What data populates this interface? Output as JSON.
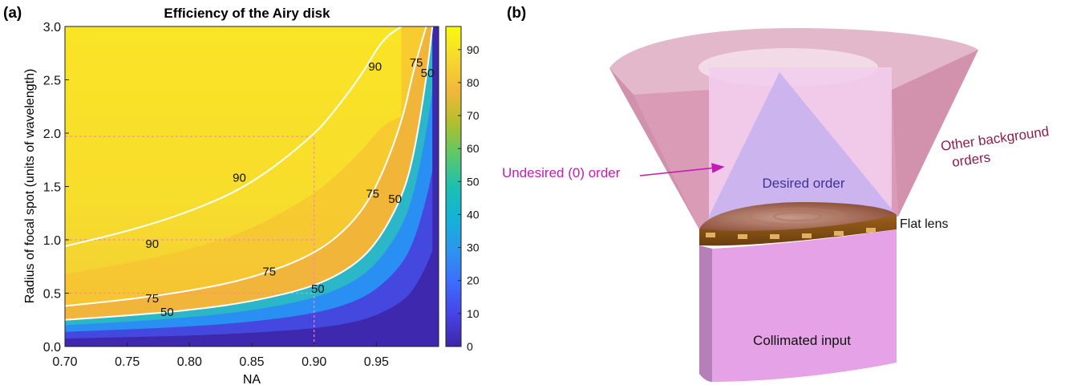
{
  "panel_a": {
    "label": "(a)"
  },
  "panel_b": {
    "label": "(b)",
    "labels": {
      "undesired": "Undesired (0) order",
      "desired": "Desired order",
      "background_line1": "Other background",
      "background_line2": "orders",
      "flat_lens": "Flat lens",
      "input": "Collimated input"
    },
    "colors": {
      "cone_outer": "#d795b1",
      "cone_inner": "#f0c8ec",
      "desired_cone": "#c9b4ee",
      "input_beam": "#e6a2e6",
      "lens": "#b8741e",
      "undesired_text": "#c51bb5",
      "background_text": "#8d1e4c",
      "desired_text": "#3f3294"
    }
  },
  "chart_data": {
    "type": "heatmap",
    "title": "Efficiency of the Airy disk",
    "xlabel": "NA",
    "ylabel": "Radius of focal spot (units of wavelength)",
    "xlim": [
      0.7,
      1.0
    ],
    "ylim": [
      0.0,
      3.0
    ],
    "xticks": [
      "0.70",
      "0.75",
      "0.80",
      "0.85",
      "0.90",
      "0.95"
    ],
    "yticks": [
      "0.0",
      "0.5",
      "1.0",
      "1.5",
      "2.0",
      "2.5",
      "3.0"
    ],
    "colorbar": {
      "range": [
        0,
        97
      ],
      "ticks": [
        "0",
        "10",
        "20",
        "30",
        "40",
        "50",
        "60",
        "70",
        "80",
        "90"
      ],
      "colormap": "parula"
    },
    "contours": [
      {
        "level": 50,
        "label": "50",
        "na": [
          0.7,
          0.75,
          0.8,
          0.85,
          0.9,
          0.93,
          0.95,
          0.97,
          0.98,
          0.99,
          0.995
        ],
        "radius": [
          0.25,
          0.29,
          0.34,
          0.42,
          0.56,
          0.74,
          0.96,
          1.38,
          1.78,
          2.5,
          3.0
        ]
      },
      {
        "level": 75,
        "label": "75",
        "na": [
          0.7,
          0.75,
          0.8,
          0.85,
          0.9,
          0.93,
          0.95,
          0.97,
          0.98,
          0.99
        ],
        "radius": [
          0.38,
          0.44,
          0.52,
          0.64,
          0.86,
          1.14,
          1.48,
          2.08,
          2.6,
          3.0
        ]
      },
      {
        "level": 90,
        "label": "90",
        "na": [
          0.7,
          0.75,
          0.8,
          0.85,
          0.9,
          0.92,
          0.94,
          0.955,
          0.97
        ],
        "radius": [
          0.94,
          1.08,
          1.26,
          1.52,
          1.98,
          2.26,
          2.58,
          2.88,
          3.0
        ]
      }
    ],
    "contour_labels": [
      {
        "text": "90",
        "na": 0.77,
        "radius": 0.97
      },
      {
        "text": "90",
        "na": 0.84,
        "radius": 1.59
      },
      {
        "text": "90",
        "na": 0.949,
        "radius": 2.63
      },
      {
        "text": "75",
        "na": 0.77,
        "radius": 0.46
      },
      {
        "text": "75",
        "na": 0.864,
        "radius": 0.71
      },
      {
        "text": "75",
        "na": 0.947,
        "radius": 1.44
      },
      {
        "text": "75",
        "na": 0.982,
        "radius": 2.67
      },
      {
        "text": "50",
        "na": 0.782,
        "radius": 0.33
      },
      {
        "text": "50",
        "na": 0.903,
        "radius": 0.55
      },
      {
        "text": "50",
        "na": 0.965,
        "radius": 1.39
      },
      {
        "text": "50",
        "na": 0.991,
        "radius": 2.57
      }
    ],
    "guides": [
      {
        "orientation": "vertical",
        "na": 0.9
      },
      {
        "orientation": "horizontal",
        "radius": 0.5
      },
      {
        "orientation": "horizontal",
        "radius": 1.0
      },
      {
        "orientation": "horizontal",
        "radius": 1.97
      }
    ],
    "guide_color": "#ff80d0"
  }
}
